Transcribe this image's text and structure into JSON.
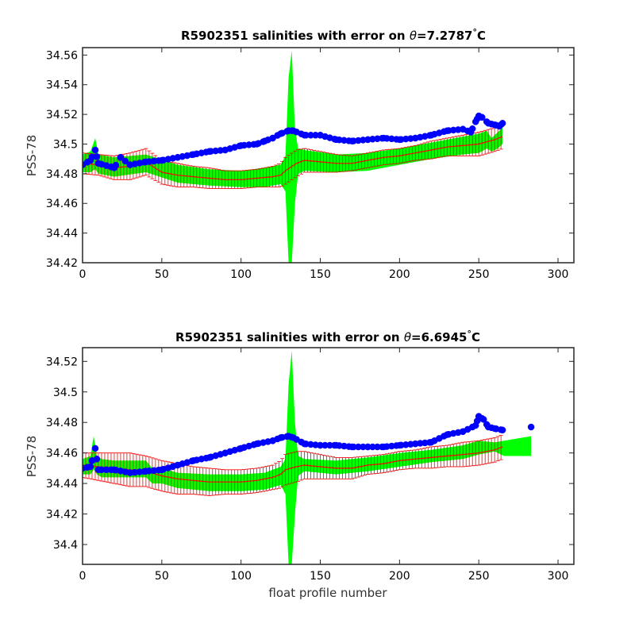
{
  "chart_data": [
    {
      "type": "scatter",
      "title_prefix": "R5902351 salinities with error on ",
      "title_theta": "θ",
      "title_value": "=7.2787",
      "title_degree": "°",
      "title_unit": "C",
      "ylabel": "PSS-78",
      "xlabel": "",
      "xlim": [
        0,
        310
      ],
      "ylim": [
        34.42,
        34.565
      ],
      "xticks": [
        0,
        50,
        100,
        150,
        200,
        250,
        300
      ],
      "yticks": [
        34.42,
        34.44,
        34.46,
        34.48,
        34.5,
        34.52,
        34.54,
        34.56
      ],
      "ytick_labels": [
        "34.42",
        "34.44",
        "34.46",
        "34.48",
        "34.5",
        "34.52",
        "34.54",
        "34.56"
      ],
      "colors": {
        "float_salinity": "#0000ff",
        "mapped_salinity": "#ff0000",
        "error_band": "#00ff00"
      },
      "float_salinity": {
        "x": [
          0,
          5,
          8,
          10,
          20,
          24,
          30,
          40,
          50,
          60,
          70,
          80,
          90,
          100,
          110,
          115,
          120,
          125,
          130,
          133,
          140,
          150,
          160,
          170,
          180,
          190,
          200,
          210,
          220,
          230,
          240,
          245,
          248,
          250,
          252,
          256,
          260,
          263,
          265
        ],
        "y": [
          34.486,
          34.489,
          34.496,
          34.487,
          34.484,
          34.491,
          34.486,
          34.488,
          34.489,
          34.491,
          34.493,
          34.495,
          34.496,
          34.499,
          34.5,
          34.502,
          34.504,
          34.507,
          34.509,
          34.509,
          34.506,
          34.506,
          34.503,
          34.502,
          34.503,
          34.504,
          34.503,
          34.504,
          34.506,
          34.509,
          34.51,
          34.508,
          34.515,
          34.519,
          34.518,
          34.514,
          34.513,
          34.512,
          34.514
        ]
      },
      "mapped_salinity": {
        "x": [
          0,
          10,
          20,
          30,
          40,
          50,
          60,
          70,
          80,
          90,
          100,
          110,
          120,
          125,
          128,
          135,
          140,
          150,
          160,
          170,
          180,
          190,
          200,
          210,
          220,
          230,
          240,
          250,
          260,
          265
        ],
        "y": [
          34.487,
          34.486,
          34.484,
          34.485,
          34.488,
          34.481,
          34.479,
          34.478,
          34.477,
          34.476,
          34.476,
          34.477,
          34.478,
          34.479,
          34.482,
          34.487,
          34.489,
          34.488,
          34.487,
          34.487,
          34.489,
          34.491,
          34.492,
          34.494,
          34.496,
          34.498,
          34.499,
          34.5,
          34.503,
          34.505
        ],
        "error": [
          0.007,
          0.007,
          0.008,
          0.009,
          0.009,
          0.008,
          0.008,
          0.007,
          0.007,
          0.006,
          0.006,
          0.006,
          0.007,
          0.008,
          0.009,
          0.009,
          0.008,
          0.007,
          0.006,
          0.005,
          0.005,
          0.005,
          0.005,
          0.005,
          0.006,
          0.006,
          0.007,
          0.008,
          0.008,
          0.008
        ]
      },
      "error_band": {
        "x": [
          0,
          5,
          8,
          10,
          20,
          40,
          60,
          80,
          100,
          115,
          125,
          128,
          130,
          132,
          134,
          136,
          140,
          160,
          180,
          200,
          220,
          240,
          250,
          255,
          258,
          262,
          265
        ],
        "upper": [
          34.493,
          34.495,
          34.504,
          34.493,
          34.491,
          34.493,
          34.486,
          34.483,
          34.482,
          34.484,
          34.486,
          34.492,
          34.545,
          34.563,
          34.51,
          34.497,
          34.496,
          34.493,
          34.494,
          34.497,
          34.501,
          34.505,
          34.507,
          34.509,
          34.504,
          34.508,
          34.511
        ],
        "lower": [
          34.481,
          34.481,
          34.483,
          34.48,
          34.478,
          34.481,
          34.474,
          34.472,
          34.471,
          34.471,
          34.473,
          34.468,
          34.42,
          34.42,
          34.46,
          34.48,
          34.482,
          34.481,
          34.482,
          34.486,
          34.49,
          34.493,
          34.494,
          34.497,
          34.495,
          34.497,
          34.5
        ]
      }
    },
    {
      "type": "scatter",
      "title_prefix": "R5902351 salinities with error on ",
      "title_theta": "θ",
      "title_value": "=6.6945",
      "title_degree": "°",
      "title_unit": "C",
      "ylabel": "PSS-78",
      "xlabel": "float profile number",
      "xlim": [
        0,
        310
      ],
      "ylim": [
        34.387,
        34.529
      ],
      "xticks": [
        0,
        50,
        100,
        150,
        200,
        250,
        300
      ],
      "yticks": [
        34.4,
        34.42,
        34.44,
        34.46,
        34.48,
        34.5,
        34.52
      ],
      "ytick_labels": [
        "34.4",
        "34.42",
        "34.44",
        "34.46",
        "34.48",
        "34.5",
        "34.52"
      ],
      "colors": {
        "float_salinity": "#0000ff",
        "mapped_salinity": "#ff0000",
        "error_band": "#00ff00"
      },
      "float_salinity": {
        "x": [
          0,
          5,
          8,
          10,
          20,
          30,
          40,
          50,
          60,
          70,
          80,
          90,
          100,
          110,
          120,
          125,
          130,
          133,
          140,
          150,
          160,
          170,
          180,
          190,
          200,
          210,
          220,
          230,
          240,
          248,
          250,
          253,
          256,
          260,
          265,
          283
        ],
        "y": [
          34.45,
          34.451,
          34.463,
          34.449,
          34.449,
          34.447,
          34.448,
          34.449,
          34.452,
          34.455,
          34.457,
          34.46,
          34.463,
          34.466,
          34.468,
          34.47,
          34.471,
          34.47,
          34.466,
          34.465,
          34.465,
          34.464,
          34.464,
          34.464,
          34.465,
          34.466,
          34.467,
          34.472,
          34.474,
          34.478,
          34.484,
          34.482,
          34.477,
          34.476,
          34.475,
          34.477
        ]
      },
      "mapped_salinity": {
        "x": [
          0,
          10,
          20,
          30,
          40,
          50,
          60,
          70,
          80,
          90,
          100,
          110,
          120,
          125,
          128,
          135,
          140,
          150,
          160,
          170,
          180,
          190,
          200,
          210,
          220,
          230,
          240,
          250,
          260,
          265
        ],
        "y": [
          34.452,
          34.451,
          34.45,
          34.449,
          34.448,
          34.445,
          34.443,
          34.442,
          34.441,
          34.441,
          34.441,
          34.442,
          34.444,
          34.446,
          34.449,
          34.451,
          34.452,
          34.451,
          34.45,
          34.45,
          34.452,
          34.453,
          34.455,
          34.456,
          34.457,
          34.458,
          34.459,
          34.46,
          34.462,
          34.464
        ],
        "error": [
          0.008,
          0.009,
          0.01,
          0.011,
          0.01,
          0.01,
          0.01,
          0.009,
          0.009,
          0.008,
          0.008,
          0.008,
          0.008,
          0.009,
          0.01,
          0.01,
          0.009,
          0.008,
          0.007,
          0.007,
          0.006,
          0.006,
          0.006,
          0.006,
          0.007,
          0.007,
          0.008,
          0.008,
          0.008,
          0.008
        ]
      },
      "error_band": {
        "x": [
          0,
          5,
          7,
          9,
          12,
          20,
          40,
          44,
          50,
          60,
          80,
          100,
          115,
          125,
          128,
          130,
          132,
          134,
          136,
          140,
          160,
          180,
          200,
          220,
          240,
          250,
          260,
          266,
          283
        ],
        "upper": [
          34.456,
          34.458,
          34.471,
          34.458,
          34.456,
          34.455,
          34.455,
          34.45,
          34.45,
          34.447,
          34.446,
          34.446,
          34.447,
          34.451,
          34.456,
          34.505,
          34.527,
          34.48,
          34.458,
          34.456,
          34.455,
          34.457,
          34.46,
          34.462,
          34.465,
          34.468,
          34.467,
          34.468,
          34.471
        ],
        "lower": [
          34.446,
          34.446,
          34.449,
          34.446,
          34.444,
          34.444,
          34.444,
          34.44,
          34.44,
          34.437,
          34.435,
          34.435,
          34.436,
          34.439,
          34.433,
          34.387,
          34.387,
          34.42,
          34.445,
          34.448,
          34.446,
          34.448,
          34.451,
          34.454,
          34.456,
          34.459,
          34.461,
          34.458,
          34.458
        ]
      }
    }
  ]
}
